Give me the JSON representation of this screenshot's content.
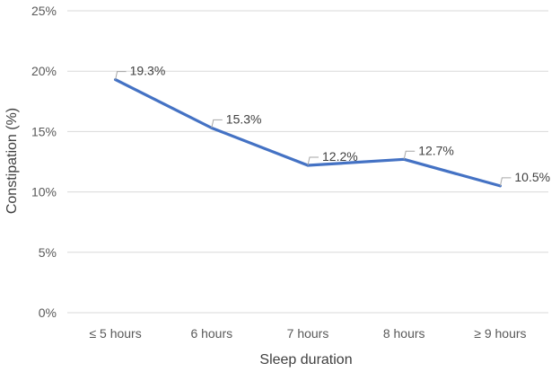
{
  "chart_data": {
    "type": "line",
    "categories": [
      "≤ 5 hours",
      "6 hours",
      "7 hours",
      "8 hours",
      "≥ 9 hours"
    ],
    "series": [
      {
        "values": [
          19.3,
          15.3,
          12.2,
          12.7,
          10.5
        ],
        "labels": [
          "19.3%",
          "15.3%",
          "12.2%",
          "12.7%",
          "10.5%"
        ],
        "color": "#4472c4"
      }
    ],
    "xlabel": "Sleep duration",
    "ylabel": "Constipation (%)",
    "ylim": [
      0,
      25
    ],
    "yticks": [
      0,
      5,
      10,
      15,
      20,
      25
    ],
    "ytick_labels": [
      "0%",
      "5%",
      "10%",
      "15%",
      "20%",
      "25%"
    ],
    "grid": true,
    "legend": "none"
  }
}
